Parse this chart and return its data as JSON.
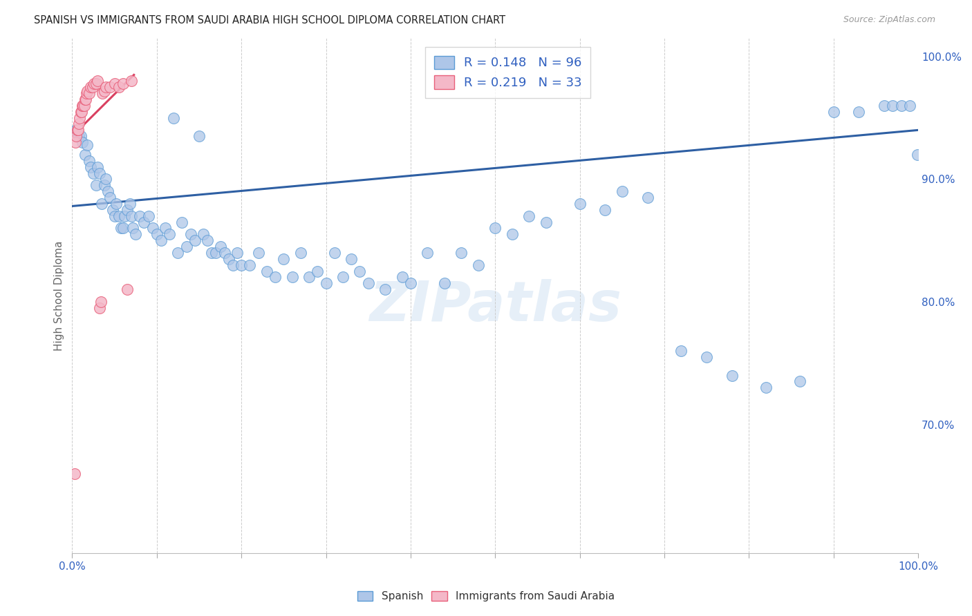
{
  "title": "SPANISH VS IMMIGRANTS FROM SAUDI ARABIA HIGH SCHOOL DIPLOMA CORRELATION CHART",
  "source": "Source: ZipAtlas.com",
  "ylabel": "High School Diploma",
  "r_spanish": 0.148,
  "n_spanish": 96,
  "r_saudi": 0.219,
  "n_saudi": 33,
  "xlim": [
    0.0,
    1.0
  ],
  "ylim": [
    0.595,
    1.015
  ],
  "y_ticks": [
    0.7,
    0.8,
    0.9,
    1.0
  ],
  "y_tick_labels": [
    "70.0%",
    "80.0%",
    "90.0%",
    "100.0%"
  ],
  "color_spanish_fill": "#AEC6E8",
  "color_spanish_edge": "#5B9BD5",
  "color_saudi_fill": "#F4B8C8",
  "color_saudi_edge": "#E8607A",
  "color_line_spanish": "#2E5FA3",
  "color_line_saudi": "#D94060",
  "color_title": "#222222",
  "color_source": "#999999",
  "color_axis_label": "#3060C0",
  "watermark_text": "ZIPatlas",
  "spanish_x": [
    0.005,
    0.008,
    0.01,
    0.012,
    0.015,
    0.018,
    0.02,
    0.022,
    0.025,
    0.028,
    0.03,
    0.032,
    0.035,
    0.038,
    0.04,
    0.042,
    0.045,
    0.048,
    0.05,
    0.052,
    0.055,
    0.058,
    0.06,
    0.062,
    0.065,
    0.068,
    0.07,
    0.072,
    0.075,
    0.08,
    0.085,
    0.09,
    0.095,
    0.1,
    0.105,
    0.11,
    0.115,
    0.12,
    0.125,
    0.13,
    0.135,
    0.14,
    0.145,
    0.15,
    0.155,
    0.16,
    0.165,
    0.17,
    0.175,
    0.18,
    0.185,
    0.19,
    0.195,
    0.2,
    0.21,
    0.22,
    0.23,
    0.24,
    0.25,
    0.26,
    0.27,
    0.28,
    0.29,
    0.3,
    0.31,
    0.32,
    0.33,
    0.34,
    0.35,
    0.37,
    0.39,
    0.4,
    0.42,
    0.44,
    0.46,
    0.48,
    0.5,
    0.52,
    0.54,
    0.56,
    0.6,
    0.63,
    0.65,
    0.68,
    0.72,
    0.75,
    0.78,
    0.82,
    0.86,
    0.9,
    0.93,
    0.96,
    0.97,
    0.98,
    0.99,
    0.999
  ],
  "spanish_y": [
    0.94,
    0.935,
    0.935,
    0.93,
    0.92,
    0.928,
    0.915,
    0.91,
    0.905,
    0.895,
    0.91,
    0.905,
    0.88,
    0.895,
    0.9,
    0.89,
    0.885,
    0.875,
    0.87,
    0.88,
    0.87,
    0.86,
    0.86,
    0.87,
    0.875,
    0.88,
    0.87,
    0.86,
    0.855,
    0.87,
    0.865,
    0.87,
    0.86,
    0.855,
    0.85,
    0.86,
    0.855,
    0.95,
    0.84,
    0.865,
    0.845,
    0.855,
    0.85,
    0.935,
    0.855,
    0.85,
    0.84,
    0.84,
    0.845,
    0.84,
    0.835,
    0.83,
    0.84,
    0.83,
    0.83,
    0.84,
    0.825,
    0.82,
    0.835,
    0.82,
    0.84,
    0.82,
    0.825,
    0.815,
    0.84,
    0.82,
    0.835,
    0.825,
    0.815,
    0.81,
    0.82,
    0.815,
    0.84,
    0.815,
    0.84,
    0.83,
    0.86,
    0.855,
    0.87,
    0.865,
    0.88,
    0.875,
    0.89,
    0.885,
    0.76,
    0.755,
    0.74,
    0.73,
    0.735,
    0.955,
    0.955,
    0.96,
    0.96,
    0.96,
    0.96,
    0.92
  ],
  "saudi_x": [
    0.003,
    0.004,
    0.005,
    0.006,
    0.007,
    0.008,
    0.009,
    0.01,
    0.011,
    0.012,
    0.013,
    0.014,
    0.015,
    0.016,
    0.017,
    0.018,
    0.02,
    0.022,
    0.024,
    0.026,
    0.028,
    0.03,
    0.032,
    0.034,
    0.036,
    0.038,
    0.04,
    0.045,
    0.05,
    0.055,
    0.06,
    0.065,
    0.07
  ],
  "saudi_y": [
    0.66,
    0.93,
    0.935,
    0.94,
    0.94,
    0.945,
    0.95,
    0.955,
    0.955,
    0.96,
    0.96,
    0.96,
    0.965,
    0.965,
    0.97,
    0.972,
    0.97,
    0.975,
    0.975,
    0.978,
    0.978,
    0.98,
    0.795,
    0.8,
    0.97,
    0.972,
    0.975,
    0.975,
    0.978,
    0.975,
    0.978,
    0.81,
    0.98
  ],
  "trend_spanish_x0": 0.0,
  "trend_spanish_x1": 1.0,
  "trend_spanish_y0": 0.878,
  "trend_spanish_y1": 0.94,
  "trend_saudi_x0": 0.0,
  "trend_saudi_x1": 0.073,
  "trend_saudi_y0": 0.935,
  "trend_saudi_y1": 0.985
}
